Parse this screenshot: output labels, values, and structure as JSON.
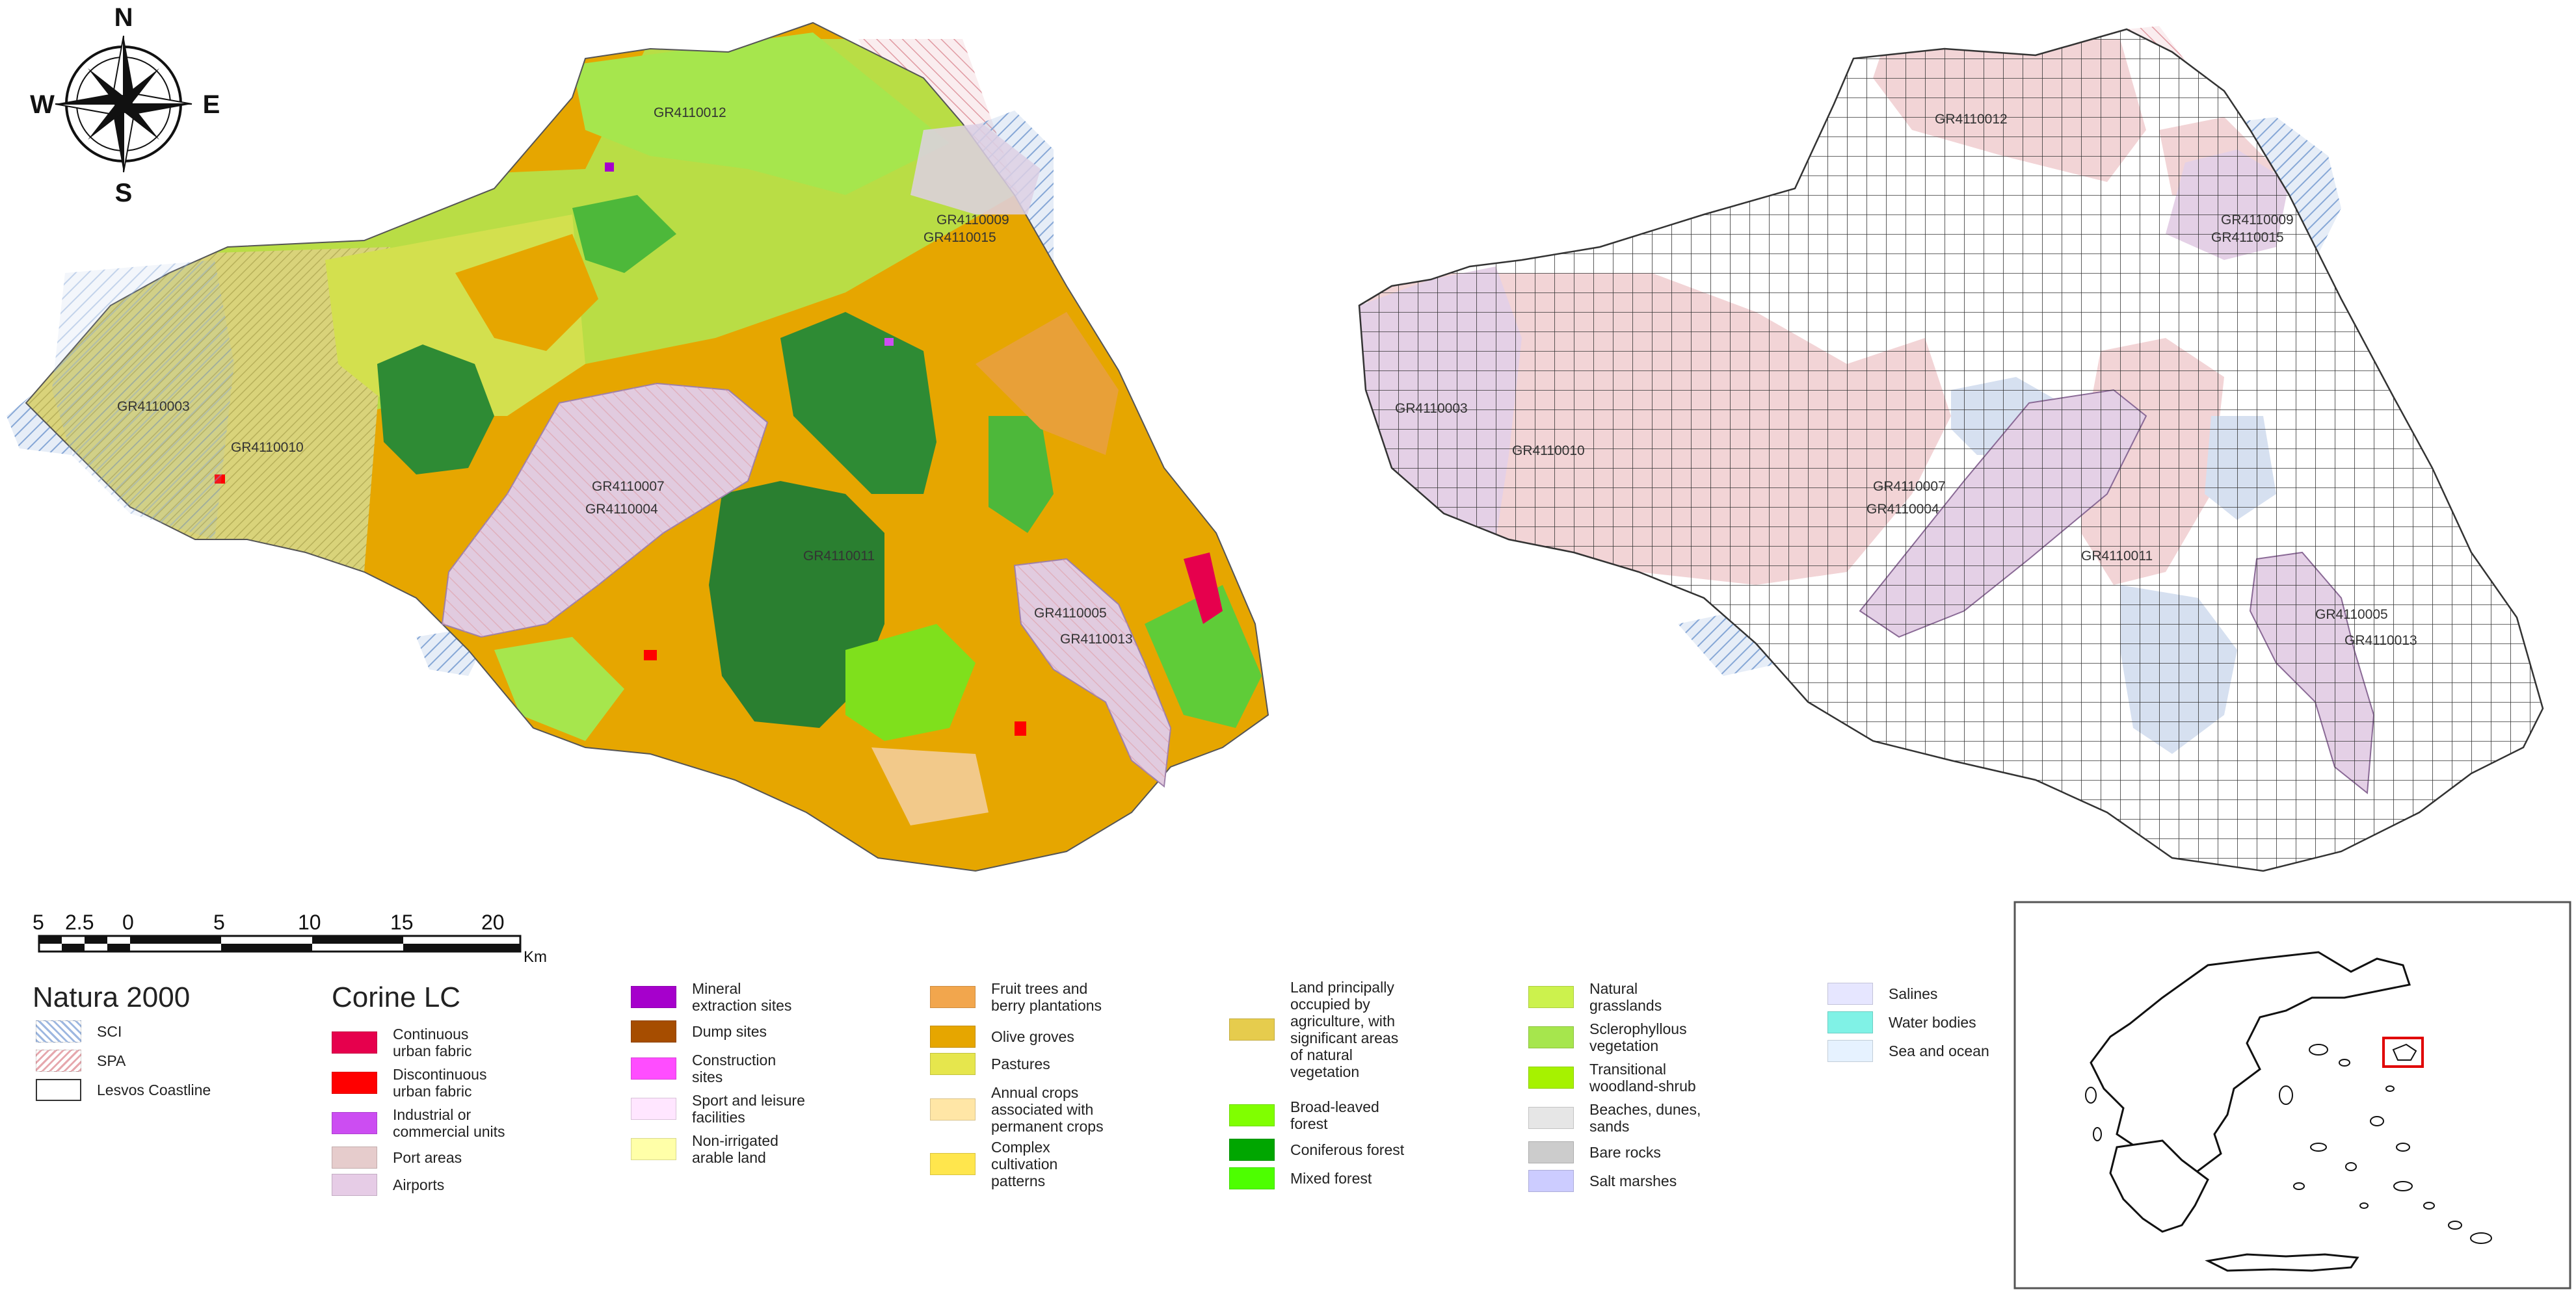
{
  "compass": {
    "n": "N",
    "s": "S",
    "e": "E",
    "w": "W"
  },
  "scalebar": {
    "ticks": [
      "5",
      "2.5",
      "0",
      "5",
      "10",
      "15",
      "20"
    ],
    "unit": "Km"
  },
  "site_labels_left": {
    "gr4110012": "GR4110012",
    "gr4110009": "GR4110009",
    "gr4110015": "GR4110015",
    "gr4110003": "GR4110003",
    "gr4110010": "GR4110010",
    "gr4110007": "GR4110007",
    "gr4110004": "GR4110004",
    "gr4110011": "GR4110011",
    "gr4110005": "GR4110005",
    "gr4110013": "GR4110013"
  },
  "site_labels_right": {
    "gr4110012": "GR4110012",
    "gr4110009": "GR4110009",
    "gr4110015": "GR4110015",
    "gr4110003": "GR4110003",
    "gr4110010": "GR4110010",
    "gr4110007": "GR4110007",
    "gr4110004": "GR4110004",
    "gr4110011": "GR4110011",
    "gr4110005": "GR4110005",
    "gr4110013": "GR4110013"
  },
  "natura_legend": {
    "title": "Natura 2000",
    "items": [
      {
        "label": "SCI",
        "color": "#9db7e0"
      },
      {
        "label": "SPA",
        "color": "#e6a7ad"
      },
      {
        "label": "Lesvos Coastline",
        "color": "#ffffff"
      }
    ]
  },
  "corine_legend": {
    "title": "Corine LC",
    "columns": [
      [
        {
          "label": "Continuous\nurban fabric",
          "color": "#e6004d"
        },
        {
          "label": "Discontinuous\nurban fabric",
          "color": "#ff0000"
        },
        {
          "label": "Industrial or\ncommercial units",
          "color": "#cc4df2"
        },
        {
          "label": "Port areas",
          "color": "#e6cccc"
        },
        {
          "label": "Airports",
          "color": "#e6cce6"
        }
      ],
      [
        {
          "label": "Mineral\nextraction sites",
          "color": "#a600cc"
        },
        {
          "label": "Dump sites",
          "color": "#a64d00"
        },
        {
          "label": "Construction\nsites",
          "color": "#ff4dff"
        },
        {
          "label": "Sport and leisure\nfacilities",
          "color": "#ffe6ff"
        },
        {
          "label": "Non-irrigated\narable land",
          "color": "#ffffa8"
        }
      ],
      [
        {
          "label": "Fruit trees and\nberry plantations",
          "color": "#f2a64d"
        },
        {
          "label": "Olive groves",
          "color": "#e6a600"
        },
        {
          "label": "Pastures",
          "color": "#e6e64d"
        },
        {
          "label": "Annual crops\nassociated with\npermanent crops",
          "color": "#ffe6a6"
        },
        {
          "label": "Complex\ncultivation\npatterns",
          "color": "#ffe64d"
        }
      ],
      [
        {
          "label": "Land principally\noccupied by\nagriculture, with\nsignificant areas\nof natural\nvegetation",
          "color": "#e6cc4d"
        },
        {
          "label": "Broad-leaved\nforest",
          "color": "#80ff00"
        },
        {
          "label": "Coniferous forest",
          "color": "#00a600"
        },
        {
          "label": "Mixed forest",
          "color": "#4dff00"
        }
      ],
      [
        {
          "label": "Natural\ngrasslands",
          "color": "#ccf24d"
        },
        {
          "label": "Sclerophyllous\nvegetation",
          "color": "#a6e64d"
        },
        {
          "label": "Transitional\nwoodland-shrub",
          "color": "#a6f200"
        },
        {
          "label": "Beaches, dunes,\nsands",
          "color": "#e6e6e6"
        },
        {
          "label": "Bare rocks",
          "color": "#cccccc"
        },
        {
          "label": "Salt marshes",
          "color": "#ccccff"
        }
      ],
      [
        {
          "label": "Salines",
          "color": "#e6e6ff"
        },
        {
          "label": "Water bodies",
          "color": "#80f2e6"
        },
        {
          "label": "Sea and ocean",
          "color": "#e6f2ff"
        }
      ]
    ]
  }
}
